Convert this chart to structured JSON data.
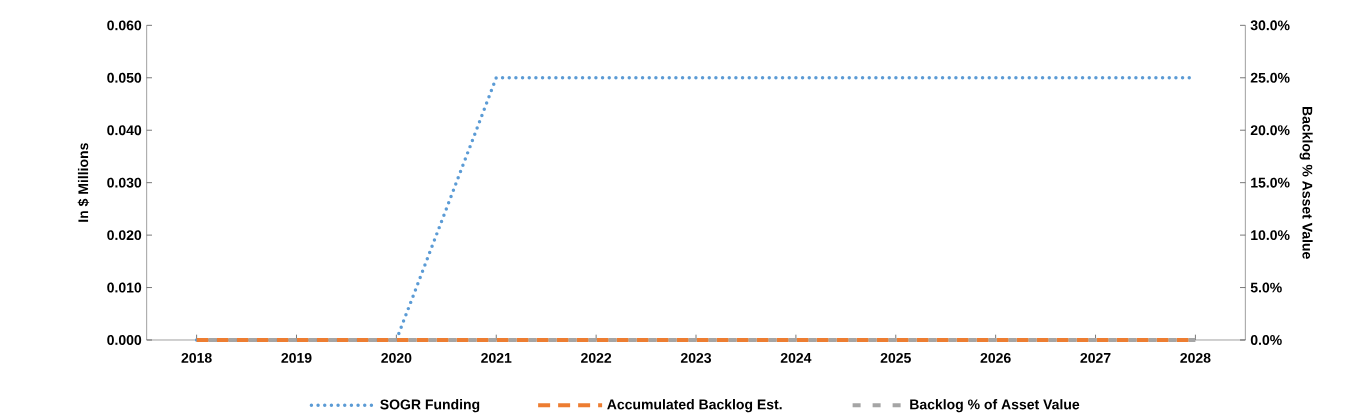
{
  "chart_data": {
    "type": "line",
    "categories": [
      "2018",
      "2019",
      "2020",
      "2021",
      "2022",
      "2023",
      "2024",
      "2025",
      "2026",
      "2027",
      "2028"
    ],
    "series": [
      {
        "name": "SOGR Funding",
        "color": "#5b9bd5",
        "line_style": "dotted",
        "values": [
          0,
          0,
          0,
          0.05,
          0.05,
          0.05,
          0.05,
          0.05,
          0.05,
          0.05,
          0.05
        ]
      },
      {
        "name": "Accumulated Backlog Est.",
        "color": "#ed7d31",
        "line_style": "dashed",
        "values": [
          0,
          0,
          0,
          0,
          0,
          0,
          0,
          0,
          0,
          0,
          0
        ]
      },
      {
        "name": "Backlog % of  Asset Value",
        "color": "#a5a5a5",
        "line_style": "dashed",
        "axis": "y2",
        "values": [
          0,
          0,
          0,
          0,
          0,
          0,
          0,
          0,
          0,
          0,
          0
        ]
      }
    ],
    "ylabel": "In $ Millions",
    "y2label": "Backlog % Asset Value",
    "ylim": [
      0,
      0.06
    ],
    "yticks": [
      {
        "value": 0,
        "label": "0.000"
      },
      {
        "value": 0.01,
        "label": "0.010"
      },
      {
        "value": 0.02,
        "label": "0.020"
      },
      {
        "value": 0.03,
        "label": "0.030"
      },
      {
        "value": 0.04,
        "label": "0.040"
      },
      {
        "value": 0.05,
        "label": "0.050"
      },
      {
        "value": 0.06,
        "label": "0.060"
      }
    ],
    "y2lim": [
      0,
      30
    ],
    "y2ticks": [
      {
        "value": 0,
        "label": "0.0%"
      },
      {
        "value": 5,
        "label": "5.0%"
      },
      {
        "value": 10,
        "label": "10.0%"
      },
      {
        "value": 15,
        "label": "15.0%"
      },
      {
        "value": 20,
        "label": "20.0%"
      },
      {
        "value": 25,
        "label": "25.0%"
      },
      {
        "value": 30,
        "label": "30.0%"
      }
    ],
    "legend": "bottom",
    "grid": false
  }
}
